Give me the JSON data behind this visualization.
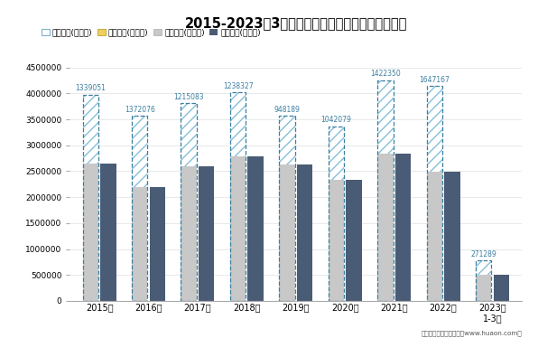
{
  "title": "2015-2023年3月福建省外商投资企业进出口差额图",
  "categories": [
    "2015年",
    "2016年",
    "2017年",
    "2018年",
    "2019年",
    "2020年",
    "2021年",
    "2022年",
    "2023年\n1-3月"
  ],
  "exports": [
    3980000,
    3570000,
    3810000,
    4020000,
    3570000,
    3370000,
    4260000,
    4140000,
    775000
  ],
  "imports": [
    2641000,
    2198000,
    2595000,
    2782000,
    2622000,
    2328000,
    2838000,
    2493000,
    504000
  ],
  "surplus_labels": [
    1339051,
    1372076,
    1215083,
    1238327,
    948189,
    1042079,
    1422350,
    1647167,
    271289
  ],
  "legend_labels": [
    "贸易顺差(万美元)",
    "贸易逆差(万美元)",
    "出口总额(万美元)",
    "进口总额(万美元)"
  ],
  "export_color": "#c8c8c8",
  "import_color": "#4a5c75",
  "hatch_face": "#ffffff",
  "hatch_edge": "#85c0d8",
  "hatch_pat": "///",
  "dash_color": "#3a7fa0",
  "label_color": "#3a7fa0",
  "legend_surplus_edge": "#7ab4cc",
  "legend_deficit_face": "#f0d060",
  "legend_deficit_edge": "#c8b040",
  "footer": "制图：华经产业研究院（www.huaon.com）",
  "bg_color": "#ffffff",
  "bar_width": 0.32,
  "ylim_max": 4500000,
  "yticks": [
    0,
    500000,
    1000000,
    1500000,
    2000000,
    2500000,
    3000000,
    3500000,
    4000000,
    4500000
  ]
}
